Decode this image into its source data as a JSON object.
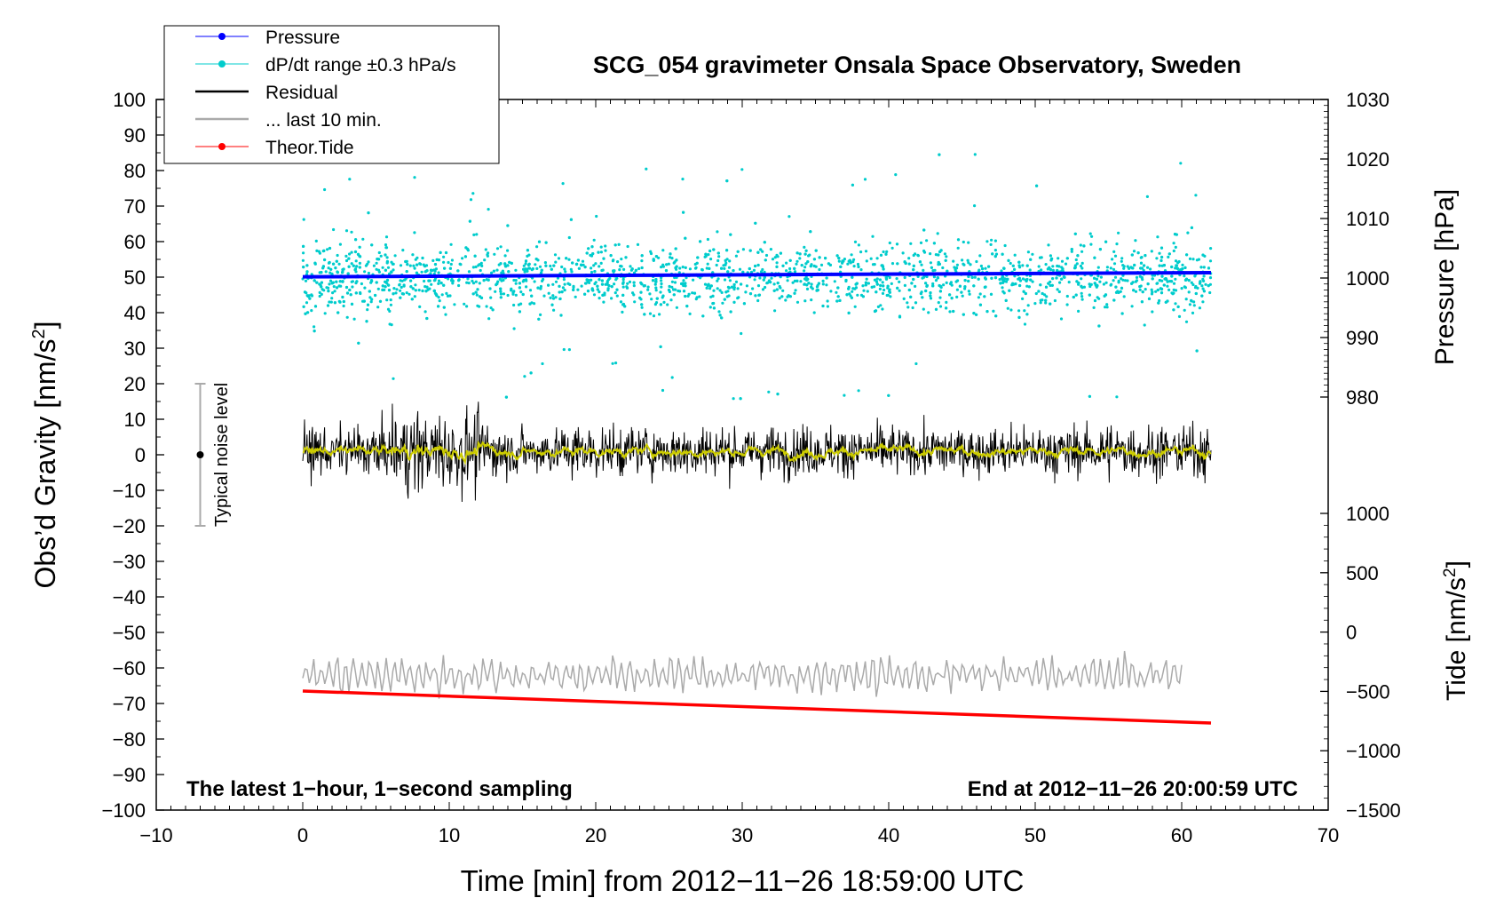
{
  "chart_data": {
    "type": "scatter",
    "title": "SCG_054 gravimeter Onsala Space Observatory, Sweden",
    "xlabel": "Time [min] from 2012−11−26 18:59:00 UTC",
    "ylabel_left": "Obs’d Gravity [nm/s",
    "ylabel_left_sup": "2",
    "ylabel_left_end": "]",
    "ylabel_pressure": "Pressure [hPa]",
    "ylabel_tide": "Tide [nm/s",
    "ylabel_tide_sup": "2",
    "ylabel_tide_end": "]",
    "xlim": [
      -10,
      70
    ],
    "ylim": [
      -100,
      100
    ],
    "pressure_lim": [
      970,
      1030
    ],
    "tide_lim": [
      -1500,
      1500
    ],
    "x_ticks": [
      "−10",
      "0",
      "10",
      "20",
      "30",
      "40",
      "50",
      "60",
      "70"
    ],
    "x_tick_values": [
      -10,
      0,
      10,
      20,
      30,
      40,
      50,
      60,
      70
    ],
    "y_ticks": [
      "100",
      "90",
      "80",
      "70",
      "60",
      "50",
      "40",
      "30",
      "20",
      "10",
      "0",
      "−10",
      "−20",
      "−30",
      "−40",
      "−50",
      "−60",
      "−70",
      "−80",
      "−90",
      "−100"
    ],
    "y_tick_values": [
      100,
      90,
      80,
      70,
      60,
      50,
      40,
      30,
      20,
      10,
      0,
      -10,
      -20,
      -30,
      -40,
      -50,
      -60,
      -70,
      -80,
      -90,
      -100
    ],
    "pressure_ticks": [
      "1030",
      "1020",
      "1010",
      "1000",
      "990",
      "980"
    ],
    "pressure_tick_values": [
      1030,
      1020,
      1010,
      1000,
      990,
      980
    ],
    "tide_ticks": [
      "1000",
      "500",
      "0",
      "−500",
      "−1000",
      "−1500"
    ],
    "tide_tick_values": [
      1000,
      500,
      0,
      -500,
      -1000,
      -1500
    ],
    "legend": [
      "Pressure",
      "dP/dt range ±0.3 hPa/s",
      "Residual",
      "... last 10 min.",
      "Theor.Tide"
    ],
    "legend_position": "top-left",
    "annotation_left": "The latest 1−hour, 1−second sampling",
    "annotation_right": "End at 2012−11−26 20:00:59 UTC",
    "noise_label": "Typical noise level",
    "noise_bar": {
      "x": -7,
      "center": 0,
      "low": -20,
      "high": 20
    },
    "series": [
      {
        "name": "Pressure",
        "color": "#0000ff",
        "axis": "pressure",
        "x": [
          0,
          62
        ],
        "values": [
          1000.2,
          1000.9
        ]
      },
      {
        "name": "dP/dt range ±0.3 hPa/s",
        "color": "#00cccc",
        "axis": "gravity",
        "x_range": [
          0,
          62
        ],
        "center": 50,
        "typical_spread": 8,
        "max_spread": 35
      },
      {
        "name": "Residual",
        "color": "#000000",
        "axis": "gravity",
        "x_range": [
          0,
          62
        ],
        "center": 1,
        "amplitude": 6
      },
      {
        "name": "... last 10 min.",
        "color": "#aaaaaa",
        "axis": "gravity",
        "x_range": [
          0,
          60
        ],
        "center": -62,
        "amplitude": 4
      },
      {
        "name": "Theor.Tide",
        "color": "#ff0000",
        "axis": "gravity",
        "x": [
          0,
          62
        ],
        "values": [
          -66.5,
          -75.5
        ]
      }
    ],
    "colors": {
      "pressure": "#0000ff",
      "dpdt": "#00cccc",
      "residual": "#000000",
      "smooth": "#cccc00",
      "last10": "#aaaaaa",
      "tide": "#ff0000",
      "noise": "#aaaaaa"
    }
  }
}
